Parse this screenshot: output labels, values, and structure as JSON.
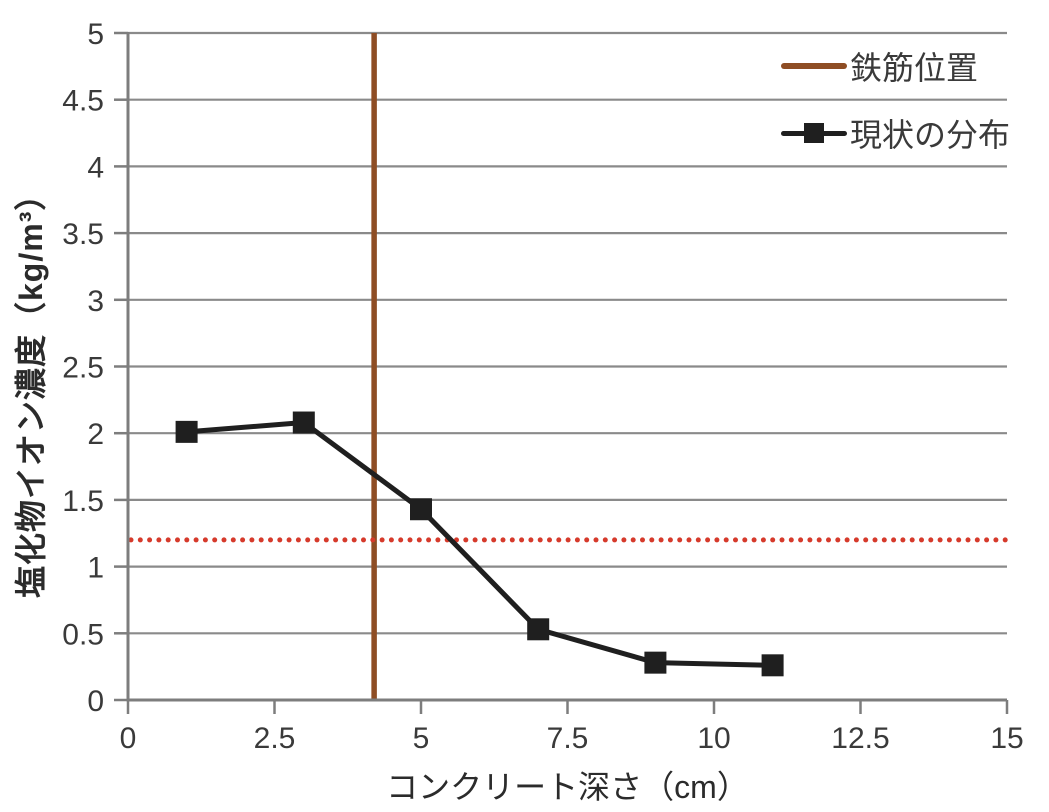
{
  "chart_data": {
    "type": "line",
    "title": "",
    "xlabel": "コンクリート深さ（cm）",
    "ylabel": "塩化物イオン濃度（kg/m³）",
    "xlim": [
      0,
      15
    ],
    "ylim": [
      0,
      5
    ],
    "x_ticks": [
      0,
      2.5,
      5,
      7.5,
      10,
      12.5,
      15
    ],
    "x_tick_labels": [
      "0",
      "2.5",
      "5",
      "7.5",
      "10",
      "12.5",
      "15"
    ],
    "y_ticks": [
      0,
      0.5,
      1,
      1.5,
      2,
      2.5,
      3,
      3.5,
      4,
      4.5,
      5
    ],
    "y_tick_labels": [
      "0",
      "0.5",
      "1",
      "1.5",
      "2",
      "2.5",
      "3",
      "3.5",
      "4",
      "4.5",
      "5"
    ],
    "grid": "horizontal-only",
    "legend_position": "top-right-inside",
    "series": [
      {
        "name": "現状の分布",
        "kind": "line-markers",
        "marker": "square",
        "color": "#1f1f1f",
        "x": [
          1,
          3,
          5,
          7,
          9,
          11
        ],
        "y": [
          2.01,
          2.08,
          1.43,
          0.53,
          0.28,
          0.26
        ]
      },
      {
        "name": "鉄筋位置",
        "kind": "vertical-line",
        "color": "#8e4d24",
        "x": 4.2,
        "y_span": [
          0,
          5
        ]
      },
      {
        "name": "",
        "kind": "horizontal-dotted-line",
        "color": "#d63a2b",
        "y": 1.2
      }
    ],
    "colors": {
      "text": "#3a3a3a",
      "grid": "#8a8a8a",
      "axis": "#7d7d7d",
      "background": "#ffffff"
    }
  },
  "legend": {
    "items": [
      {
        "label": "鉄筋位置",
        "swatch": "brown-line"
      },
      {
        "label": "現状の分布",
        "swatch": "black-line-with-square-marker"
      }
    ]
  }
}
